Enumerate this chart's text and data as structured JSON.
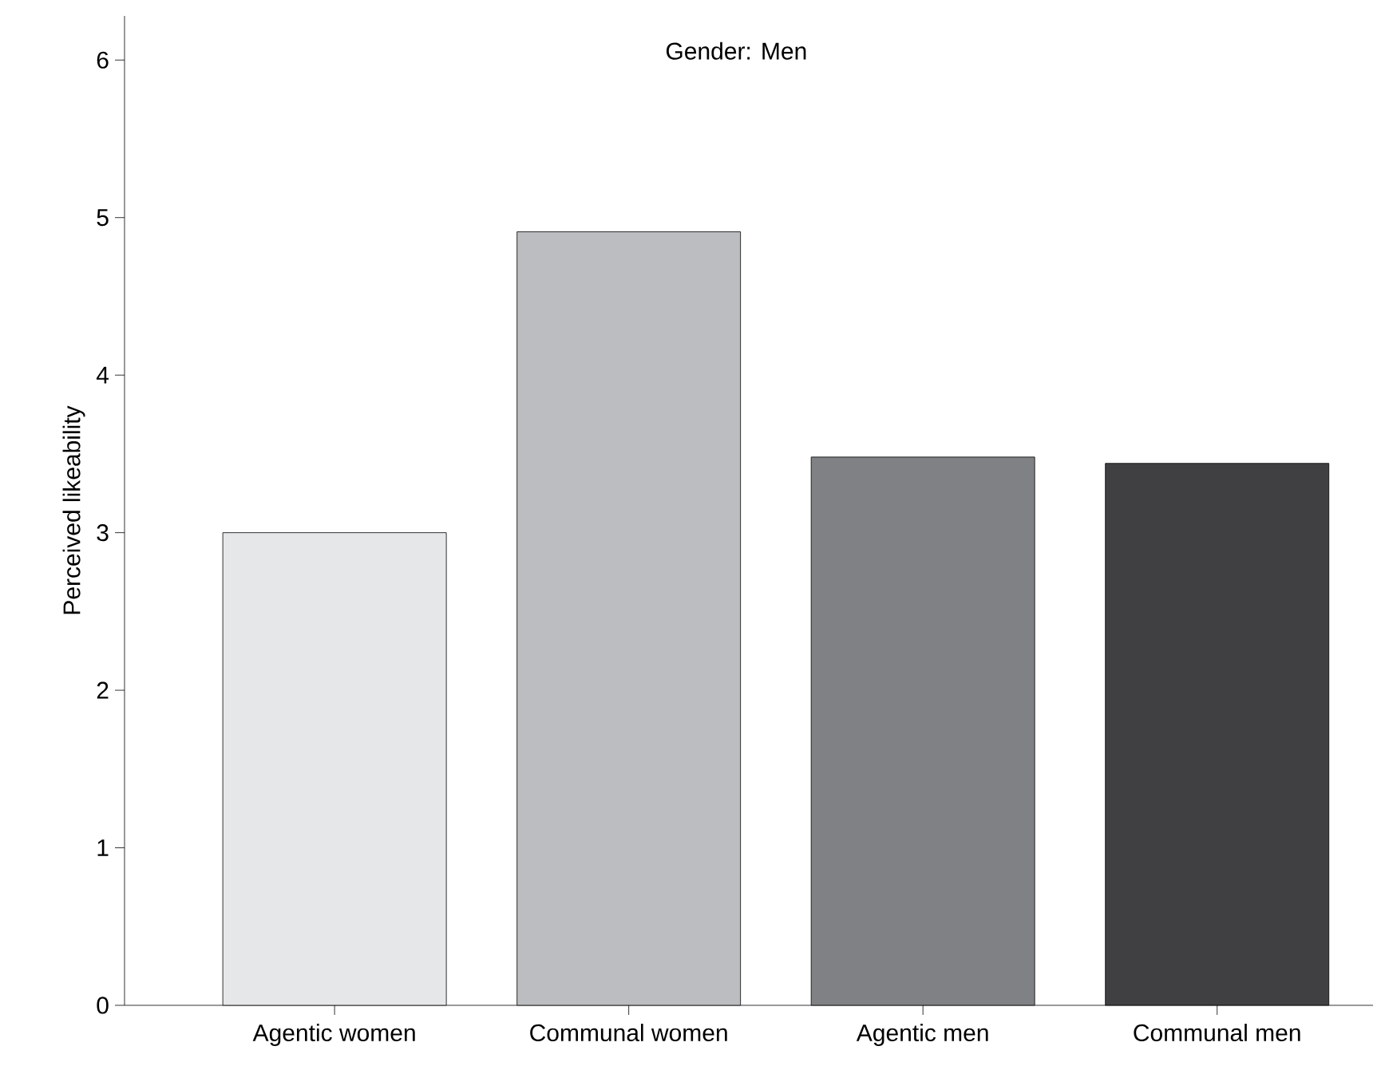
{
  "chart_data": {
    "type": "bar",
    "title": "Gender: Men",
    "ylabel": "Perceived likeability",
    "categories": [
      "Agentic women",
      "Communal women",
      "Agentic men",
      "Communal men"
    ],
    "values": [
      3.0,
      4.91,
      3.48,
      3.44
    ],
    "colors": [
      "#e6e7e8",
      "#bcbdc0",
      "#808184",
      "#404042"
    ],
    "ylim": [
      0,
      6.28
    ],
    "yticks": [
      0,
      1,
      2,
      3,
      4,
      5,
      6
    ],
    "grid": false
  }
}
